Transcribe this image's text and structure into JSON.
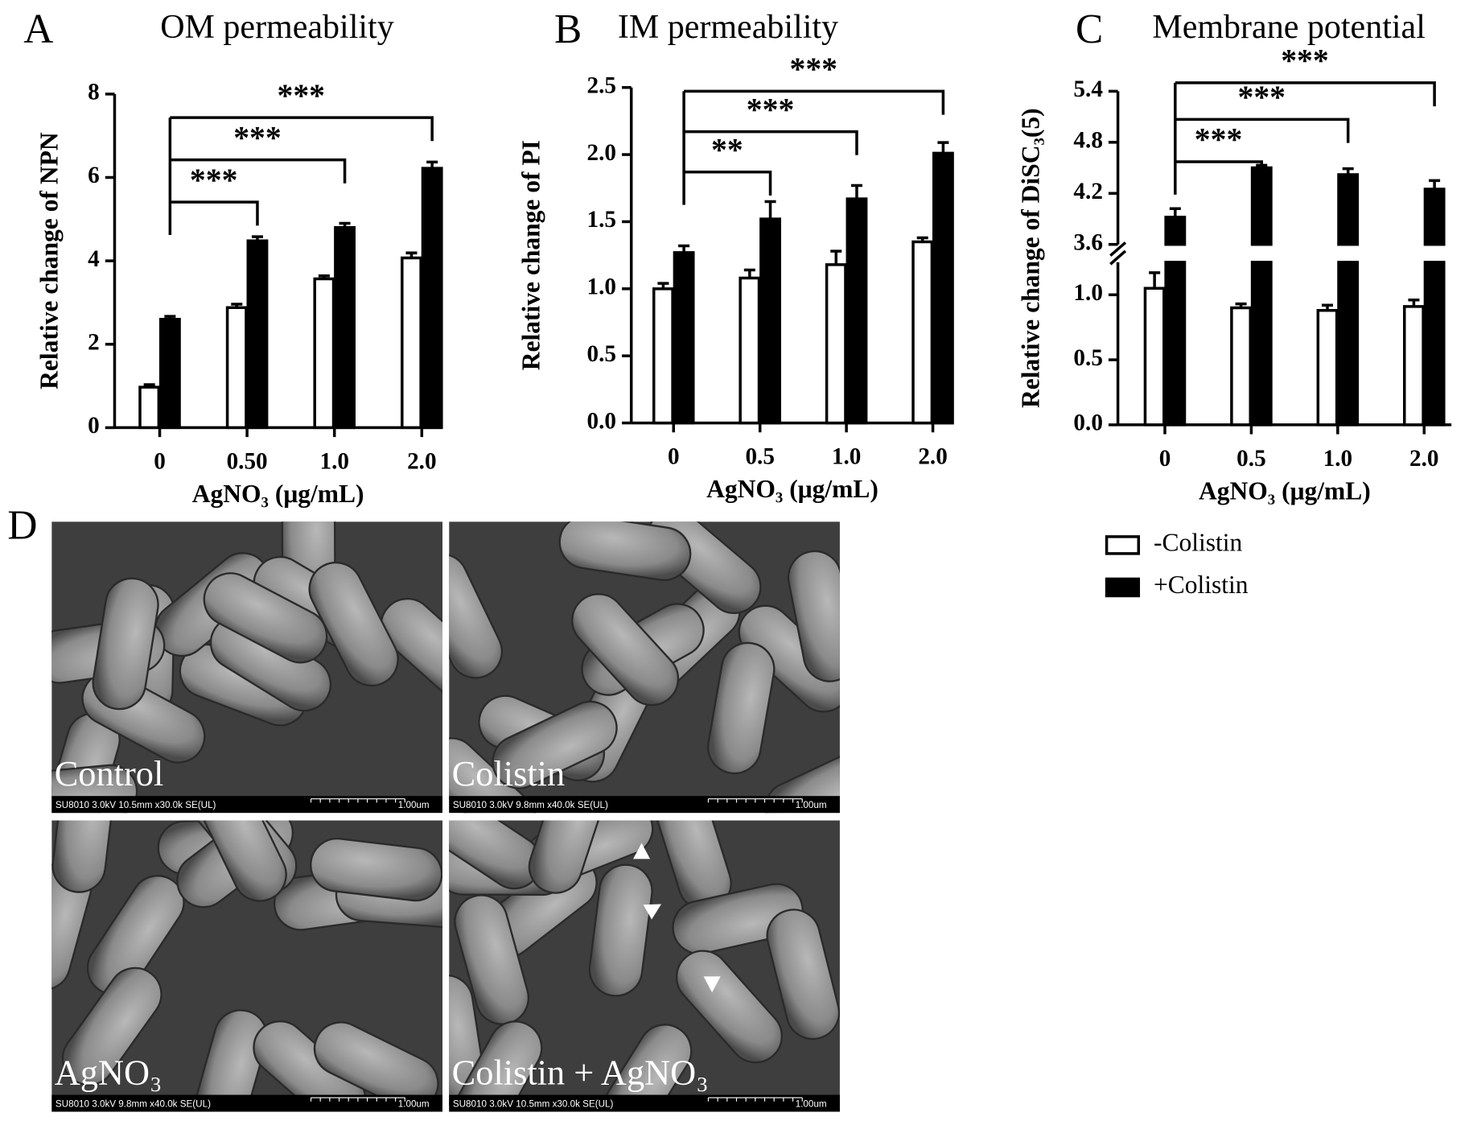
{
  "chart_data": [
    {
      "type": "bar",
      "panel": "A",
      "title": "OM permeability",
      "y_label": "Relative change of NPN",
      "x_label": "AgNO₃ (μg/mL)",
      "categories": [
        "0",
        "0.50",
        "1.0",
        "2.0"
      ],
      "series": [
        {
          "color": "#ffffff",
          "values": [
            0.97,
            2.88,
            3.57,
            4.07
          ],
          "errors": [
            0.06,
            0.08,
            0.07,
            0.12
          ]
        },
        {
          "color": "#000000",
          "values": [
            2.6,
            4.48,
            4.8,
            6.22
          ],
          "errors": [
            0.07,
            0.1,
            0.1,
            0.15
          ]
        }
      ],
      "ylim": [
        0,
        8
      ],
      "yticks": [
        0,
        2,
        4,
        6,
        8
      ],
      "significance": [
        "***",
        "***",
        "***"
      ]
    },
    {
      "type": "bar",
      "panel": "B",
      "title": "IM permeability",
      "y_label": "Relative change of PI",
      "x_label": "AgNO₃ (μg/mL)",
      "categories": [
        "0",
        "0.5",
        "1.0",
        "2.0"
      ],
      "series": [
        {
          "color": "#ffffff",
          "values": [
            1.0,
            1.08,
            1.18,
            1.35
          ],
          "errors": [
            0.04,
            0.06,
            0.1,
            0.03
          ]
        },
        {
          "color": "#000000",
          "values": [
            1.27,
            1.52,
            1.67,
            2.01
          ],
          "errors": [
            0.05,
            0.13,
            0.1,
            0.08
          ]
        }
      ],
      "ylim": [
        0,
        2.5
      ],
      "yticks": [
        {
          "value": 0,
          "label": "0.0"
        },
        0.5,
        {
          "value": 1,
          "label": "1.0"
        },
        1.5,
        {
          "value": 2,
          "label": "2.0"
        },
        2.5
      ],
      "significance": [
        "**",
        "***",
        "***"
      ]
    },
    {
      "type": "bar",
      "panel": "C",
      "title": "Membrane potential",
      "y_label": "Relative change of DiSC₃(5)",
      "x_label": "AgNO₃ (μg/mL)",
      "categories": [
        "0",
        "0.5",
        "1.0",
        "2.0"
      ],
      "series": [
        {
          "name": "-Colistin",
          "color": "#ffffff",
          "values": [
            1.05,
            0.9,
            0.88,
            0.91
          ],
          "errors": [
            0.12,
            0.03,
            0.04,
            0.05
          ]
        },
        {
          "name": "+Colistin",
          "color": "#000000",
          "values": [
            3.92,
            4.5,
            4.42,
            4.25
          ],
          "errors": [
            0.1,
            0.03,
            0.07,
            0.1
          ]
        }
      ],
      "ylim": [
        0,
        5.4
      ],
      "ybreak": [
        1.25,
        3.6
      ],
      "yticks": [
        {
          "value": 0,
          "label": "0.0"
        },
        0.5,
        {
          "value": 1,
          "label": "1.0"
        },
        3.6,
        4.2,
        4.8,
        5.4
      ],
      "significance": [
        "***",
        "***",
        "***"
      ],
      "legend": true
    }
  ],
  "micrographs": {
    "panel": "D",
    "images": [
      {
        "label": "Control",
        "caption": "SU8010 3.0kV 10.5mm x30.0k SE(UL)",
        "scale": "1.00um"
      },
      {
        "label": "Colistin",
        "caption": "SU8010 3.0kV 9.8mm x40.0k SE(UL)",
        "scale": "1.00um"
      },
      {
        "label": "AgNO₃",
        "caption": "SU8010 3.0kV 9.8mm x40.0k SE(UL)",
        "scale": "1.00um"
      },
      {
        "label": "Colistin + AgNO₃",
        "caption": "SU8010 3.0kV 10.5mm x30.0k SE(UL)",
        "scale": "1.00um"
      }
    ]
  }
}
